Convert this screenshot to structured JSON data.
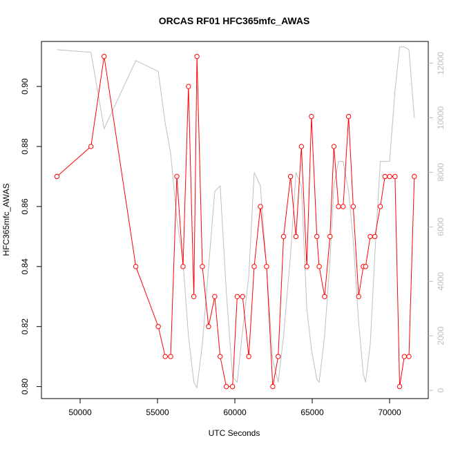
{
  "chart_data": {
    "type": "line",
    "title": "ORCAS RF01 HFC365mfc_AWAS",
    "xlabel": "UTC Seconds",
    "ylabel": "HFC365mfc_AWAS",
    "xlim": [
      47500,
      72500
    ],
    "ylim": [
      0.796,
      0.915
    ],
    "y2lim": [
      -300,
      12800
    ],
    "x_ticks": [
      50000,
      55000,
      60000,
      65000,
      70000
    ],
    "y_ticks": [
      0.8,
      0.82,
      0.84,
      0.86,
      0.88,
      0.9
    ],
    "y_tick_labels": [
      "0.80",
      "0.82",
      "0.84",
      "0.86",
      "0.88",
      "0.90"
    ],
    "y2_ticks": [
      0,
      2000,
      4000,
      6000,
      8000,
      10000,
      12000
    ],
    "series": [
      {
        "role": "primary",
        "axis": "left",
        "color": "#ff0000",
        "marker": "open-circle",
        "x": [
          48500,
          50700,
          51550,
          53600,
          55050,
          55500,
          55850,
          56250,
          56650,
          57000,
          57350,
          57550,
          57900,
          58300,
          58700,
          59050,
          59450,
          59850,
          60150,
          60500,
          60900,
          61250,
          61650,
          62050,
          62450,
          62800,
          63150,
          63600,
          63950,
          64300,
          64650,
          64950,
          65300,
          65450,
          65800,
          66150,
          66400,
          66700,
          67000,
          67350,
          67650,
          68000,
          68300,
          68450,
          68750,
          69050,
          69400,
          69700,
          70000,
          70350,
          70650,
          70950,
          71250,
          71600
        ],
        "y": [
          0.87,
          0.88,
          0.91,
          0.84,
          0.82,
          0.81,
          0.81,
          0.87,
          0.84,
          0.9,
          0.83,
          0.91,
          0.84,
          0.82,
          0.83,
          0.81,
          0.8,
          0.8,
          0.83,
          0.83,
          0.81,
          0.84,
          0.86,
          0.84,
          0.8,
          0.81,
          0.85,
          0.87,
          0.85,
          0.88,
          0.84,
          0.89,
          0.85,
          0.84,
          0.83,
          0.85,
          0.88,
          0.86,
          0.86,
          0.89,
          0.86,
          0.83,
          0.84,
          0.84,
          0.85,
          0.85,
          0.86,
          0.87,
          0.87,
          0.87,
          0.8,
          0.81,
          0.81,
          0.87
        ]
      },
      {
        "role": "secondary",
        "axis": "right",
        "color": "#bebebe",
        "x": [
          48500,
          50700,
          51550,
          53600,
          55050,
          55500,
          55850,
          56250,
          56650,
          57000,
          57350,
          57550,
          57900,
          58300,
          58700,
          59050,
          59450,
          59850,
          60150,
          60500,
          60900,
          61250,
          61650,
          62050,
          62450,
          62800,
          63150,
          63600,
          63950,
          64300,
          64650,
          64950,
          65300,
          65450,
          65800,
          66150,
          66400,
          66700,
          67000,
          67350,
          67650,
          68000,
          68300,
          68450,
          68750,
          69050,
          69400,
          69700,
          70000,
          70350,
          70650,
          70950,
          71250,
          71600
        ],
        "y": [
          12500,
          12400,
          9600,
          12100,
          11700,
          9800,
          8700,
          6300,
          4700,
          2000,
          300,
          100,
          1700,
          4500,
          7300,
          7500,
          3600,
          500,
          300,
          2200,
          4200,
          8000,
          7500,
          4500,
          1100,
          300,
          2000,
          5000,
          8000,
          7500,
          3000,
          1500,
          400,
          300,
          2000,
          4800,
          7500,
          8400,
          8400,
          7300,
          5500,
          2500,
          600,
          300,
          1700,
          5000,
          8400,
          8400,
          8400,
          11000,
          12600,
          12600,
          12500,
          10000
        ]
      }
    ]
  }
}
